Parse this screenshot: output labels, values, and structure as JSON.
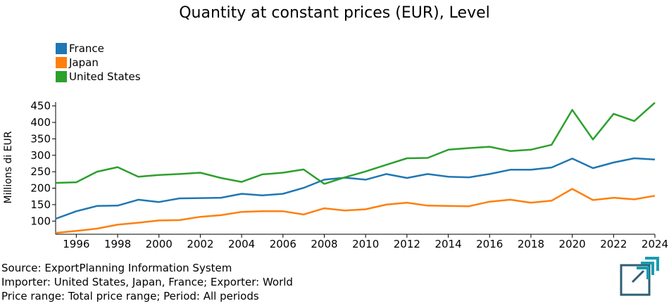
{
  "chart_title": "Quantity at constant prices (EUR), Level",
  "legend": [
    {
      "label": "France",
      "color": "#1f77b4"
    },
    {
      "label": "Japan",
      "color": "#ff7f0e"
    },
    {
      "label": "United States",
      "color": "#2ca02c"
    }
  ],
  "footer": {
    "source": "Source: ExportPlanning Information System",
    "importer": "Importer: United States, Japan, France; Exporter: World",
    "price": "Price range: Total price range; Period: All periods"
  },
  "logo": {
    "icon": "exportplanning-logo-icon",
    "colors": [
      "#2e5f73",
      "#1a9bb0"
    ]
  },
  "chart_data": {
    "type": "line",
    "title": "Quantity at constant prices (EUR), Level",
    "xlabel": "",
    "ylabel": "Millions di EUR",
    "x": [
      1995,
      1996,
      1997,
      1998,
      1999,
      2000,
      2001,
      2002,
      2003,
      2004,
      2005,
      2006,
      2007,
      2008,
      2009,
      2010,
      2011,
      2012,
      2013,
      2014,
      2015,
      2016,
      2017,
      2018,
      2019,
      2020,
      2021,
      2022,
      2023,
      2024
    ],
    "xlim": [
      1995,
      2024
    ],
    "xticks": [
      "1996",
      "1998",
      "2000",
      "2002",
      "2004",
      "2006",
      "2008",
      "2010",
      "2012",
      "2014",
      "2016",
      "2018",
      "2020",
      "2022",
      "2024"
    ],
    "ylim": [
      60,
      462
    ],
    "yticks": [
      "100",
      "150",
      "200",
      "250",
      "300",
      "350",
      "400",
      "450"
    ],
    "grid": false,
    "legend_position": "top-left",
    "series": [
      {
        "name": "France",
        "color": "#1f77b4",
        "values": [
          107,
          130,
          146,
          147,
          165,
          158,
          169,
          170,
          171,
          183,
          178,
          183,
          201,
          226,
          232,
          226,
          243,
          231,
          243,
          235,
          233,
          243,
          256,
          256,
          263,
          290,
          261,
          278,
          291,
          287
        ]
      },
      {
        "name": "Japan",
        "color": "#ff7f0e",
        "values": [
          64,
          70,
          77,
          89,
          95,
          102,
          103,
          113,
          118,
          128,
          130,
          130,
          120,
          139,
          132,
          136,
          150,
          156,
          147,
          146,
          145,
          159,
          165,
          156,
          162,
          198,
          164,
          171,
          166,
          177
        ]
      },
      {
        "name": "United States",
        "color": "#2ca02c",
        "values": [
          216,
          218,
          250,
          264,
          235,
          240,
          243,
          247,
          231,
          219,
          242,
          247,
          257,
          213,
          233,
          251,
          271,
          291,
          292,
          317,
          322,
          326,
          313,
          317,
          332,
          438,
          348,
          426,
          404,
          460
        ]
      }
    ]
  }
}
